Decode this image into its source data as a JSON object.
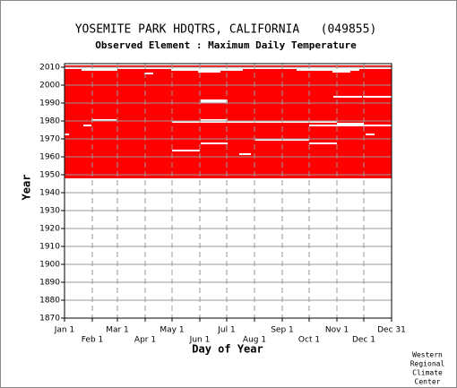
{
  "chart_data": {
    "type": "availability",
    "title": "YOSEMITE PARK HDQTRS, CALIFORNIA   (049855)",
    "subtitle": "Observed Element : Maximum Daily Temperature",
    "x_label": "Day of Year",
    "y_label": "Year",
    "credit": [
      "Western",
      "Regional",
      "Climate",
      "Center"
    ],
    "color": "#ff0000",
    "grid": true,
    "xlim": [
      1,
      366
    ],
    "ylim": [
      1870,
      2012
    ],
    "xticks": [
      {
        "value": 1,
        "label": "Jan 1"
      },
      {
        "value": 32,
        "label": "Feb 1"
      },
      {
        "value": 60,
        "label": "Mar 1"
      },
      {
        "value": 91,
        "label": "Apr 1"
      },
      {
        "value": 121,
        "label": "May 1"
      },
      {
        "value": 152,
        "label": "Jun 1"
      },
      {
        "value": 182,
        "label": "Jul 1"
      },
      {
        "value": 213,
        "label": "Aug 1"
      },
      {
        "value": 244,
        "label": "Sep 1"
      },
      {
        "value": 274,
        "label": "Oct 1"
      },
      {
        "value": 305,
        "label": "Nov 1"
      },
      {
        "value": 335,
        "label": "Dec 1"
      },
      {
        "value": 366,
        "label": "Dec 31"
      }
    ],
    "yticks": [
      1870,
      1880,
      1890,
      1900,
      1910,
      1920,
      1930,
      1940,
      1950,
      1960,
      1970,
      1980,
      1990,
      2000,
      2010
    ],
    "coverage": [
      {
        "start": 1948,
        "end": 2010
      }
    ],
    "gaps": [
      {
        "year": 2009,
        "start": 1,
        "end": 366
      },
      {
        "year": 2008,
        "start": 20,
        "end": 60
      },
      {
        "year": 2008,
        "start": 120,
        "end": 200
      },
      {
        "year": 2008,
        "start": 260,
        "end": 330
      },
      {
        "year": 2007,
        "start": 150,
        "end": 175
      },
      {
        "year": 2007,
        "start": 300,
        "end": 320
      },
      {
        "year": 2006,
        "start": 90,
        "end": 100
      },
      {
        "year": 1993,
        "start": 301,
        "end": 333
      },
      {
        "year": 1993,
        "start": 334,
        "end": 366
      },
      {
        "year": 1991,
        "start": 153,
        "end": 183
      },
      {
        "year": 1990,
        "start": 153,
        "end": 183
      },
      {
        "year": 1980,
        "start": 31,
        "end": 59
      },
      {
        "year": 1980,
        "start": 153,
        "end": 183
      },
      {
        "year": 1979,
        "start": 121,
        "end": 244
      },
      {
        "year": 1979,
        "start": 244,
        "end": 305
      },
      {
        "year": 1978,
        "start": 305,
        "end": 335
      },
      {
        "year": 1977,
        "start": 22,
        "end": 31
      },
      {
        "year": 1977,
        "start": 274,
        "end": 366
      },
      {
        "year": 1972,
        "start": 1,
        "end": 6
      },
      {
        "year": 1972,
        "start": 337,
        "end": 347
      },
      {
        "year": 1969,
        "start": 214,
        "end": 274
      },
      {
        "year": 1967,
        "start": 153,
        "end": 183
      },
      {
        "year": 1967,
        "start": 274,
        "end": 305
      },
      {
        "year": 1963,
        "start": 121,
        "end": 152
      },
      {
        "year": 1961,
        "start": 196,
        "end": 209
      }
    ]
  }
}
